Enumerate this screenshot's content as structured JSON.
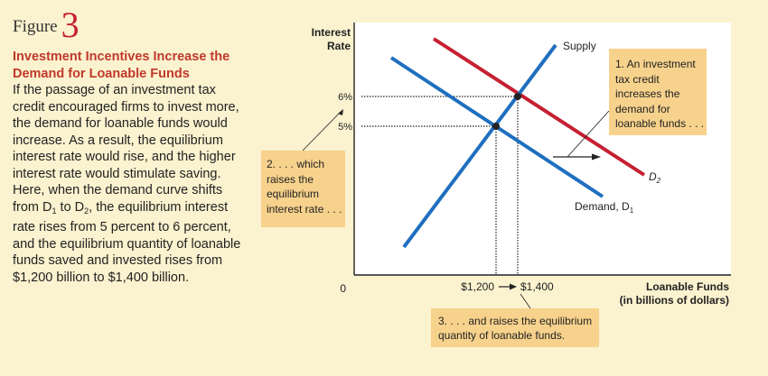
{
  "figure": {
    "word": "Figure",
    "number": "3"
  },
  "caption": {
    "title": "Investment Incentives Increase the Demand for Loanable Funds",
    "body_1": "If the passage of an investment tax credit encouraged firms to invest more, the demand for loanable funds would increase. As a result, the equilibrium interest rate would rise, and the higher interest rate would stimulate saving. Here, when the demand curve shifts from D",
    "body_sub1": "1",
    "body_2": " to D",
    "body_sub2": "2",
    "body_3": ", the equilibrium interest rate rises from 5 percent to 6 percent, and the equilibrium quantity of loanable funds saved and invested rises from $1,200 billion to $1,400 billion."
  },
  "chart": {
    "y_axis_label_1": "Interest",
    "y_axis_label_2": "Rate",
    "x_axis_label_1": "Loanable Funds",
    "x_axis_label_2": "(in billions of dollars)",
    "origin": "0",
    "tick_6": "6%",
    "tick_5": "5%",
    "q_1200": "$1,200",
    "q_1400": "$1,400",
    "supply_label": "Supply",
    "demand1_label": "Demand, D",
    "demand1_sub": "1",
    "demand2_label": "D",
    "demand2_sub": "2"
  },
  "chart_data": {
    "type": "line",
    "xlabel": "Loanable Funds (in billions of dollars)",
    "ylabel": "Interest Rate",
    "series": [
      {
        "name": "Supply"
      },
      {
        "name": "Demand, D1"
      },
      {
        "name": "D2"
      }
    ],
    "equilibria": [
      {
        "quantity": 1200,
        "rate": 5
      },
      {
        "quantity": 1400,
        "rate": 6
      }
    ]
  },
  "annotations": {
    "note1": [
      "1. An investment",
      "tax credit",
      "increases the",
      "demand for",
      "loanable funds . . ."
    ],
    "note2": [
      "2. . . . which",
      "raises the",
      "equilibrium",
      "interest rate . . ."
    ],
    "note3": [
      "3. . . . and raises the equilibrium",
      "quantity of loanable funds."
    ]
  },
  "colors": {
    "background": "#fbf2cf",
    "supply": "#1f6fbf",
    "demand1": "#1f6fbf",
    "demand2": "#c62032",
    "callout": "#f7d28c",
    "heading": "#c0392b"
  }
}
